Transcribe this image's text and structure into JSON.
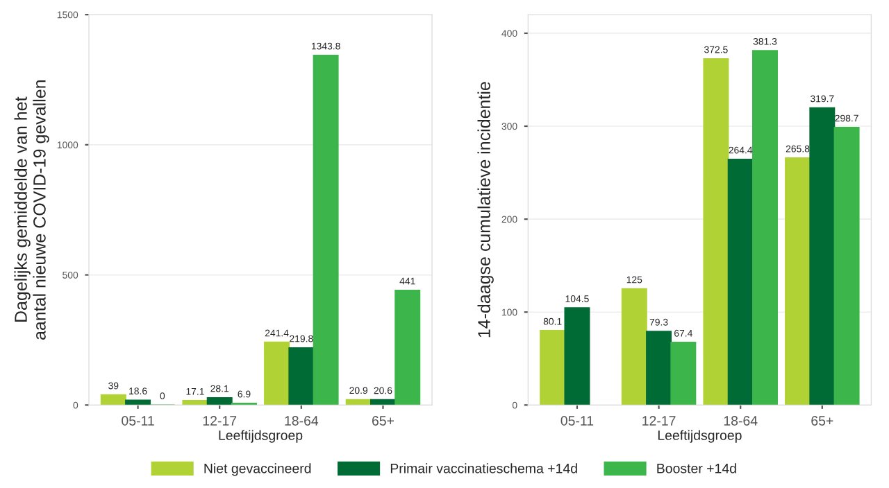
{
  "chart_data": [
    {
      "type": "bar",
      "xlabel": "Leeftijdsgroep",
      "ylabel": "Dagelijks gemiddelde van het\naantal nieuwe COVID-19 gevallen",
      "categories": [
        "05-11",
        "12-17",
        "18-64",
        "65+"
      ],
      "series": [
        {
          "name": "Niet gevaccineerd",
          "color": "#b0d235",
          "values": [
            39,
            17.1,
            241.4,
            20.9
          ]
        },
        {
          "name": "Primair vaccinatieschema +14d",
          "color": "#006b35",
          "values": [
            18.6,
            28.1,
            219.8,
            20.6
          ]
        },
        {
          "name": "Booster +14d",
          "color": "#3cb54a",
          "values": [
            0,
            6.9,
            1343.8,
            441
          ]
        }
      ],
      "ylim": [
        0,
        1500
      ],
      "yticks": [
        0,
        500,
        1000,
        1500
      ],
      "grid": "y",
      "data_labels": true,
      "legend": "bottom"
    },
    {
      "type": "bar",
      "xlabel": "Leeftijdsgroep",
      "ylabel": "14-daagse cumulatieve incidentie",
      "categories": [
        "05-11",
        "12-17",
        "18-64",
        "65+"
      ],
      "series": [
        {
          "name": "Niet gevaccineerd",
          "color": "#b0d235",
          "values": [
            80.1,
            125,
            372.5,
            265.8
          ]
        },
        {
          "name": "Primair vaccinatieschema +14d",
          "color": "#006b35",
          "values": [
            104.5,
            79.3,
            264.4,
            319.7
          ]
        },
        {
          "name": "Booster +14d",
          "color": "#3cb54a",
          "values": [
            null,
            67.4,
            381.3,
            298.7
          ]
        }
      ],
      "ylim": [
        0,
        420
      ],
      "yticks": [
        0,
        100,
        200,
        300,
        400
      ],
      "grid": "y",
      "data_labels": true,
      "legend": "bottom"
    }
  ]
}
